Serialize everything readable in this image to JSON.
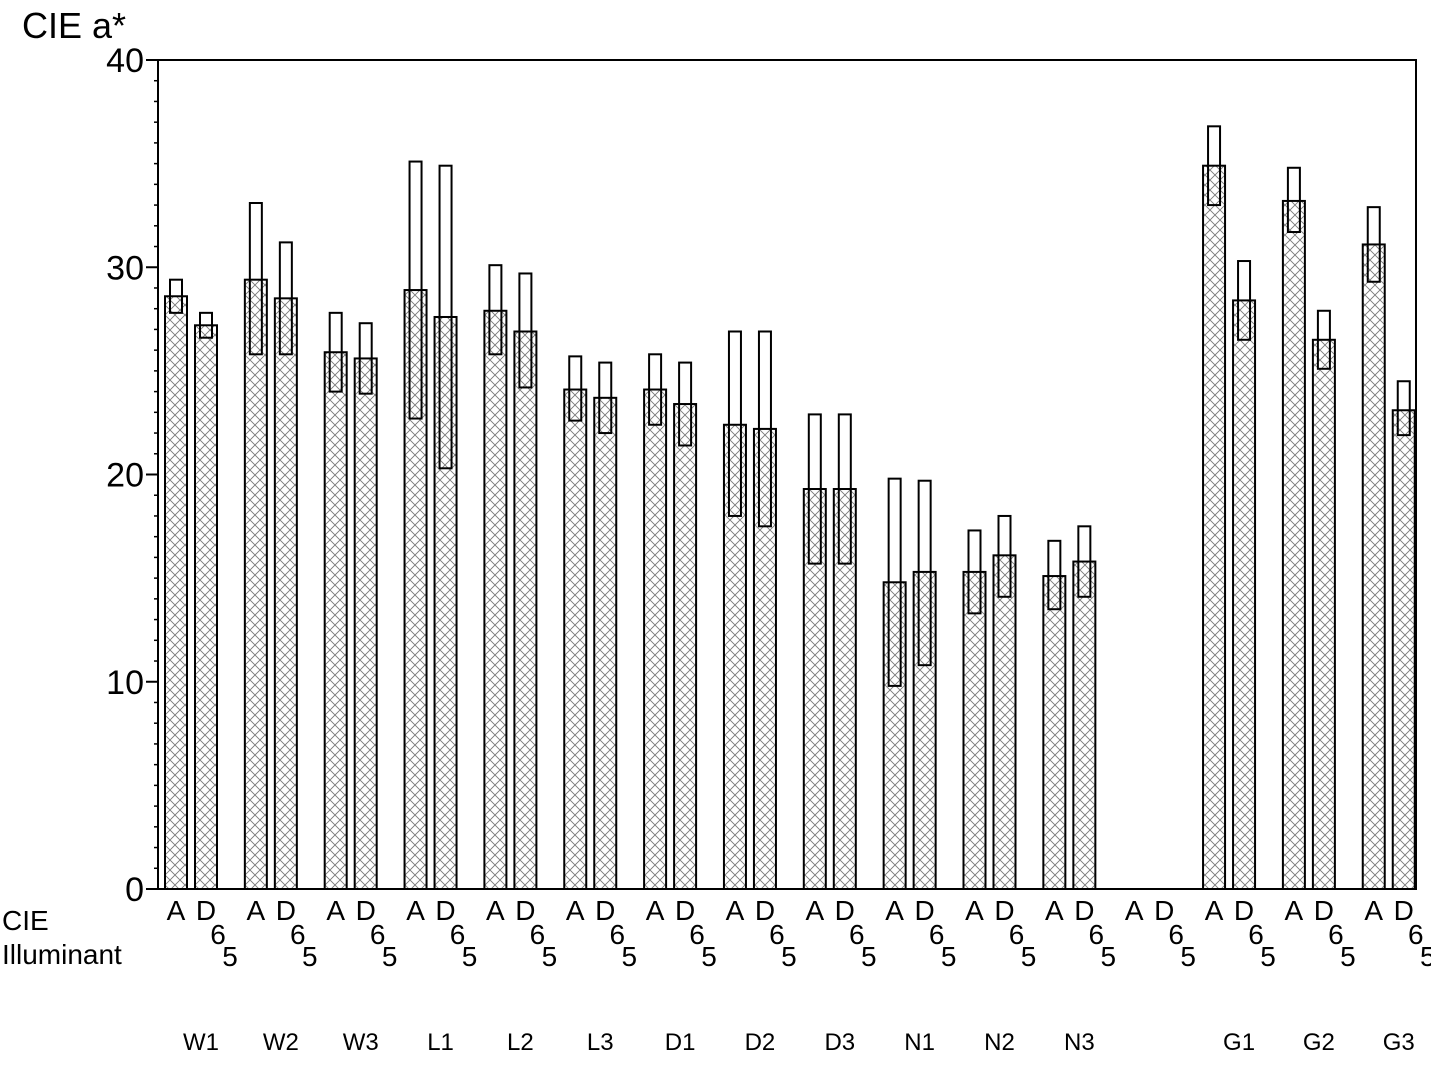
{
  "chart_data": {
    "type": "bar",
    "ylabel": "CIE a*",
    "xlabel": "",
    "ylim": [
      0,
      40
    ],
    "yticks": [
      0,
      10,
      20,
      30,
      40
    ],
    "grid": false,
    "illuminant_axis_label": [
      "CIE",
      "Illuminant"
    ],
    "illuminant_tick": {
      "A": "A",
      "D_top": "D",
      "D_mid": "6",
      "D_bot": "5"
    },
    "series": [
      {
        "illuminant": "A"
      },
      {
        "illuminant": "D65"
      }
    ],
    "groups": [
      {
        "label": "W1",
        "A": {
          "mean": 28.6,
          "lo": 27.8,
          "hi": 29.4
        },
        "D65": {
          "mean": 27.2,
          "lo": 26.6,
          "hi": 27.8
        }
      },
      {
        "label": "W2",
        "A": {
          "mean": 29.4,
          "lo": 25.8,
          "hi": 33.1
        },
        "D65": {
          "mean": 28.5,
          "lo": 25.8,
          "hi": 31.2
        }
      },
      {
        "label": "W3",
        "A": {
          "mean": 25.9,
          "lo": 24.0,
          "hi": 27.8
        },
        "D65": {
          "mean": 25.6,
          "lo": 23.9,
          "hi": 27.3
        }
      },
      {
        "label": "L1",
        "A": {
          "mean": 28.9,
          "lo": 22.7,
          "hi": 35.1
        },
        "D65": {
          "mean": 27.6,
          "lo": 20.3,
          "hi": 34.9
        }
      },
      {
        "label": "L2",
        "A": {
          "mean": 27.9,
          "lo": 25.8,
          "hi": 30.1
        },
        "D65": {
          "mean": 26.9,
          "lo": 24.2,
          "hi": 29.7
        }
      },
      {
        "label": "L3",
        "A": {
          "mean": 24.1,
          "lo": 22.6,
          "hi": 25.7
        },
        "D65": {
          "mean": 23.7,
          "lo": 22.0,
          "hi": 25.4
        }
      },
      {
        "label": "D1",
        "A": {
          "mean": 24.1,
          "lo": 22.4,
          "hi": 25.8
        },
        "D65": {
          "mean": 23.4,
          "lo": 21.4,
          "hi": 25.4
        }
      },
      {
        "label": "D2",
        "A": {
          "mean": 22.4,
          "lo": 18.0,
          "hi": 26.9
        },
        "D65": {
          "mean": 22.2,
          "lo": 17.5,
          "hi": 26.9
        }
      },
      {
        "label": "D3",
        "A": {
          "mean": 19.3,
          "lo": 15.7,
          "hi": 22.9
        },
        "D65": {
          "mean": 19.3,
          "lo": 15.7,
          "hi": 22.9
        }
      },
      {
        "label": "N1",
        "A": {
          "mean": 14.8,
          "lo": 9.8,
          "hi": 19.8
        },
        "D65": {
          "mean": 15.3,
          "lo": 10.8,
          "hi": 19.7
        }
      },
      {
        "label": "N2",
        "A": {
          "mean": 15.3,
          "lo": 13.3,
          "hi": 17.3
        },
        "D65": {
          "mean": 16.1,
          "lo": 14.1,
          "hi": 18.0
        }
      },
      {
        "label": "N3",
        "A": {
          "mean": 15.1,
          "lo": 13.5,
          "hi": 16.8
        },
        "D65": {
          "mean": 15.8,
          "lo": 14.1,
          "hi": 17.5
        }
      },
      {
        "label": "",
        "A": null,
        "D65": null
      },
      {
        "label": "G1",
        "A": {
          "mean": 34.9,
          "lo": 33.0,
          "hi": 36.8
        },
        "D65": {
          "mean": 28.4,
          "lo": 26.5,
          "hi": 30.3
        }
      },
      {
        "label": "G2",
        "A": {
          "mean": 33.2,
          "lo": 31.7,
          "hi": 34.8
        },
        "D65": {
          "mean": 26.5,
          "lo": 25.1,
          "hi": 27.9
        }
      },
      {
        "label": "G3",
        "A": {
          "mean": 31.1,
          "lo": 29.3,
          "hi": 32.9
        },
        "D65": {
          "mean": 23.1,
          "lo": 21.9,
          "hi": 24.5
        }
      }
    ]
  }
}
